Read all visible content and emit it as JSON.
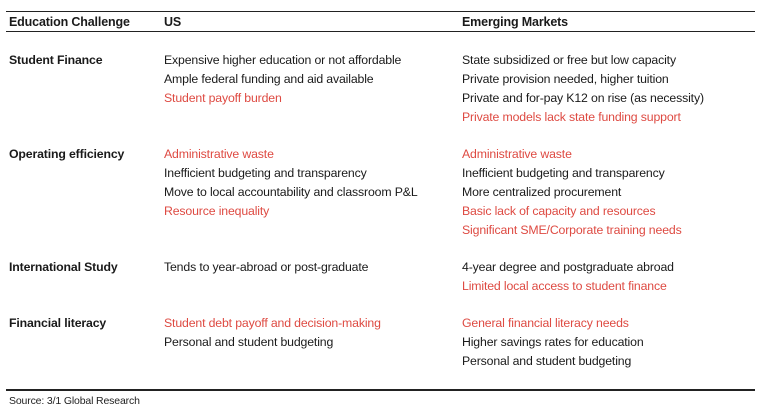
{
  "header": {
    "challenge": "Education Challenge",
    "us": "US",
    "em": "Emerging Markets"
  },
  "accent_color": "#de4a42",
  "rows": [
    {
      "label": "Student Finance",
      "us": [
        {
          "text": "Expensive higher education or not affordable",
          "red": false
        },
        {
          "text": "Ample federal funding and aid available",
          "red": false
        },
        {
          "text": "Student payoff burden",
          "red": true
        }
      ],
      "em": [
        {
          "text": "State subsidized or free but low capacity",
          "red": false
        },
        {
          "text": "Private provision needed, higher tuition",
          "red": false
        },
        {
          "text": "Private and for-pay K12 on rise (as necessity)",
          "red": false
        },
        {
          "text": "Private models lack state funding support",
          "red": true
        }
      ]
    },
    {
      "label": "Operating efficiency",
      "us": [
        {
          "text": "Administrative waste",
          "red": true
        },
        {
          "text": "Inefficient budgeting and transparency",
          "red": false
        },
        {
          "text": "Move to local accountability and classroom P&L",
          "red": false
        },
        {
          "text": "Resource inequality",
          "red": true
        }
      ],
      "em": [
        {
          "text": "Administrative waste",
          "red": true
        },
        {
          "text": "Inefficient budgeting and transparency",
          "red": false
        },
        {
          "text": "More centralized procurement",
          "red": false
        },
        {
          "text": "Basic lack of capacity and resources",
          "red": true
        },
        {
          "text": "Significant SME/Corporate training needs",
          "red": true
        }
      ]
    },
    {
      "label": "International Study",
      "us": [
        {
          "text": "Tends to year-abroad or post-graduate",
          "red": false
        }
      ],
      "em": [
        {
          "text": "4-year degree and postgraduate abroad",
          "red": false
        },
        {
          "text": "Limited local access to student finance",
          "red": true
        }
      ]
    },
    {
      "label": "Financial literacy",
      "us": [
        {
          "text": "Student debt payoff and decision-making",
          "red": true
        },
        {
          "text": "Personal and student budgeting",
          "red": false
        }
      ],
      "em": [
        {
          "text": "General financial literacy needs",
          "red": true
        },
        {
          "text": "Higher savings rates for education",
          "red": false
        },
        {
          "text": "Personal  and student budgeting",
          "red": false
        }
      ]
    }
  ],
  "source": "Source: 3/1 Global Research"
}
